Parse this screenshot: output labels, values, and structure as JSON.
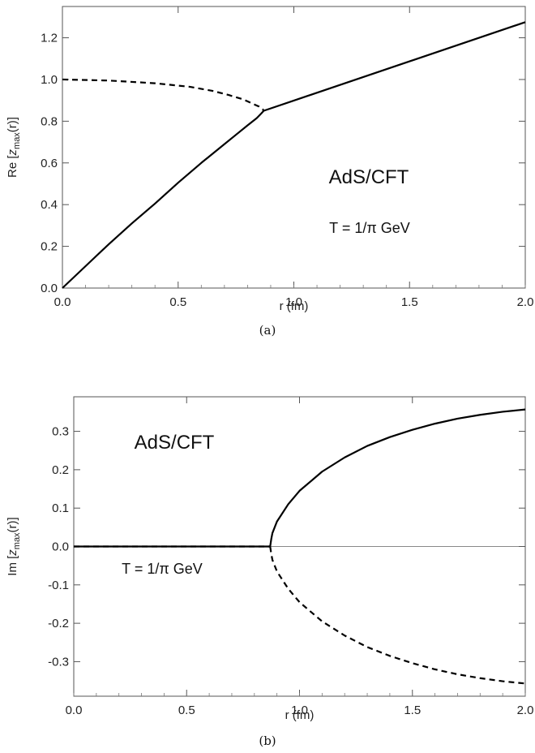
{
  "chart_data": [
    {
      "type": "line",
      "panel_caption": "(a)",
      "xlabel": "r (fm)",
      "ylabel": {
        "prefix": "Re [",
        "var": "z",
        "sub": "max",
        "suffix": "(r)]"
      },
      "xlim": [
        0,
        2.0
      ],
      "ylim": [
        0,
        1.35
      ],
      "x_ticks": [
        0,
        0.5,
        1.0,
        1.5,
        2.0
      ],
      "x_tick_labels": [
        "0.0",
        "0.5",
        "1.0",
        "1.5",
        "2.0"
      ],
      "y_ticks": [
        0,
        0.2,
        0.4,
        0.6,
        0.8,
        1.0,
        1.2
      ],
      "y_tick_labels": [
        "0.0",
        "0.2",
        "0.4",
        "0.6",
        "0.8",
        "1.0",
        "1.2"
      ],
      "grid": false,
      "annotations": [
        "AdS/CFT",
        "T = 1/π GeV"
      ],
      "series": [
        {
          "style": "dashed",
          "x": [
            0.0,
            0.2,
            0.4,
            0.55,
            0.65,
            0.72,
            0.78,
            0.82,
            0.85,
            0.865,
            0.87
          ],
          "y": [
            1.0,
            0.995,
            0.982,
            0.965,
            0.945,
            0.925,
            0.905,
            0.885,
            0.87,
            0.858,
            0.85
          ]
        },
        {
          "style": "solid",
          "x": [
            0.0,
            0.1,
            0.2,
            0.3,
            0.4,
            0.5,
            0.6,
            0.7,
            0.75,
            0.8,
            0.84,
            0.86,
            0.87
          ],
          "y": [
            0.0,
            0.105,
            0.21,
            0.31,
            0.405,
            0.505,
            0.6,
            0.69,
            0.735,
            0.78,
            0.815,
            0.838,
            0.85
          ]
        },
        {
          "style": "solid",
          "x": [
            0.87,
            2.0
          ],
          "y": [
            0.85,
            1.275
          ]
        }
      ]
    },
    {
      "type": "line",
      "panel_caption": "(b)",
      "xlabel": "r (fm)",
      "ylabel": {
        "prefix": "Im [",
        "var": "z",
        "sub": "max",
        "suffix": "(r)]"
      },
      "xlim": [
        0,
        2.0
      ],
      "ylim": [
        -0.39,
        0.39
      ],
      "x_ticks": [
        0,
        0.5,
        1.0,
        1.5,
        2.0
      ],
      "x_tick_labels": [
        "0.0",
        "0.5",
        "1.0",
        "1.5",
        "2.0"
      ],
      "y_ticks": [
        -0.3,
        -0.2,
        -0.1,
        0.0,
        0.1,
        0.2,
        0.3
      ],
      "y_tick_labels": [
        "-0.3",
        "-0.2",
        "-0.1",
        "0.0",
        "0.1",
        "0.2",
        "0.3"
      ],
      "grid": false,
      "zero_line": true,
      "annotations": [
        "AdS/CFT",
        "T = 1/π GeV"
      ],
      "series": [
        {
          "style": "solid",
          "x": [
            0.0,
            0.87
          ],
          "y": [
            0.0,
            0.0
          ]
        },
        {
          "style": "dashed",
          "x": [
            0.0,
            0.87
          ],
          "y": [
            0.0,
            0.0
          ]
        },
        {
          "style": "solid",
          "x": [
            0.87,
            0.875,
            0.88,
            0.9,
            0.95,
            1.0,
            1.1,
            1.2,
            1.3,
            1.4,
            1.5,
            1.6,
            1.7,
            1.8,
            1.9,
            2.0
          ],
          "y": [
            0.0,
            0.02,
            0.035,
            0.065,
            0.11,
            0.145,
            0.195,
            0.232,
            0.262,
            0.285,
            0.304,
            0.32,
            0.333,
            0.343,
            0.351,
            0.357
          ]
        },
        {
          "style": "dashed",
          "x": [
            0.87,
            0.875,
            0.88,
            0.9,
            0.95,
            1.0,
            1.1,
            1.2,
            1.3,
            1.4,
            1.5,
            1.6,
            1.7,
            1.8,
            1.9,
            2.0
          ],
          "y": [
            0.0,
            -0.02,
            -0.035,
            -0.065,
            -0.11,
            -0.145,
            -0.195,
            -0.232,
            -0.262,
            -0.285,
            -0.304,
            -0.32,
            -0.333,
            -0.343,
            -0.351,
            -0.357
          ]
        }
      ]
    }
  ]
}
